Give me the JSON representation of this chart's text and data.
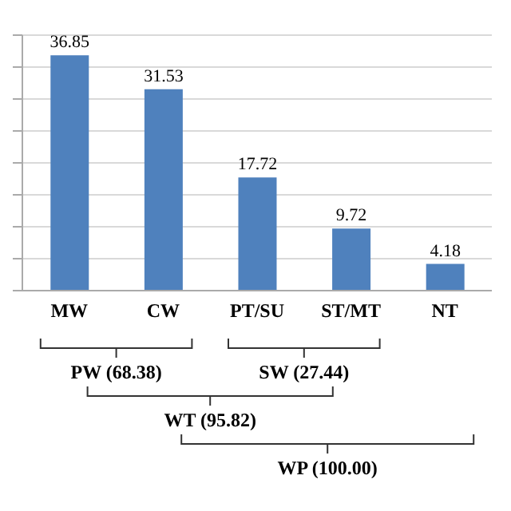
{
  "chart_data": {
    "type": "bar",
    "categories": [
      "MW",
      "CW",
      "PT/SU",
      "ST/MT",
      "NT"
    ],
    "values": [
      36.85,
      31.53,
      17.72,
      9.72,
      4.18
    ],
    "color": "#4f81bd",
    "data_labels": true,
    "ylim": [
      0,
      40
    ],
    "yticks": [
      {
        "value": 0,
        "label": null
      },
      {
        "value": 5,
        "label": null
      },
      {
        "value": 10,
        "label": null
      },
      {
        "value": 15,
        "label": null
      },
      {
        "value": 20,
        "label": null
      },
      {
        "value": 25,
        "label": null
      },
      {
        "value": 30,
        "label": null
      },
      {
        "value": 35,
        "label": null
      },
      {
        "value": 40,
        "label": null
      }
    ],
    "tick_labels": "x",
    "grid": "y",
    "annotations": [
      "PW (68.38)",
      "SW (27.44)",
      "WT (95.82)",
      "WP (100.00)"
    ]
  }
}
